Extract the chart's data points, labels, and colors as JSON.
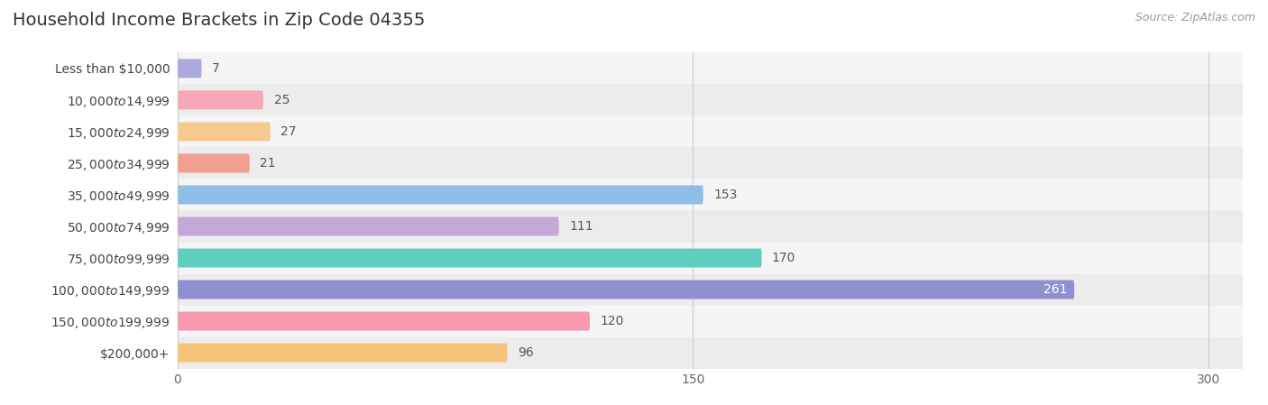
{
  "title": "Household Income Brackets in Zip Code 04355",
  "source": "Source: ZipAtlas.com",
  "categories": [
    "Less than $10,000",
    "$10,000 to $14,999",
    "$15,000 to $24,999",
    "$25,000 to $34,999",
    "$35,000 to $49,999",
    "$50,000 to $74,999",
    "$75,000 to $99,999",
    "$100,000 to $149,999",
    "$150,000 to $199,999",
    "$200,000+"
  ],
  "values": [
    7,
    25,
    27,
    21,
    153,
    111,
    170,
    261,
    120,
    96
  ],
  "bar_colors": [
    "#aaaadd",
    "#f7a8b8",
    "#f5c990",
    "#f0a090",
    "#90bce8",
    "#c4a8d8",
    "#5ecfbf",
    "#9090d0",
    "#f799b0",
    "#f5c478"
  ],
  "xlim": [
    0,
    310
  ],
  "xticks": [
    0,
    150,
    300
  ],
  "title_fontsize": 14,
  "label_fontsize": 10,
  "value_fontsize": 10,
  "source_fontsize": 9,
  "bar_height": 0.6,
  "row_colors": [
    "#f5f5f5",
    "#ececec"
  ]
}
